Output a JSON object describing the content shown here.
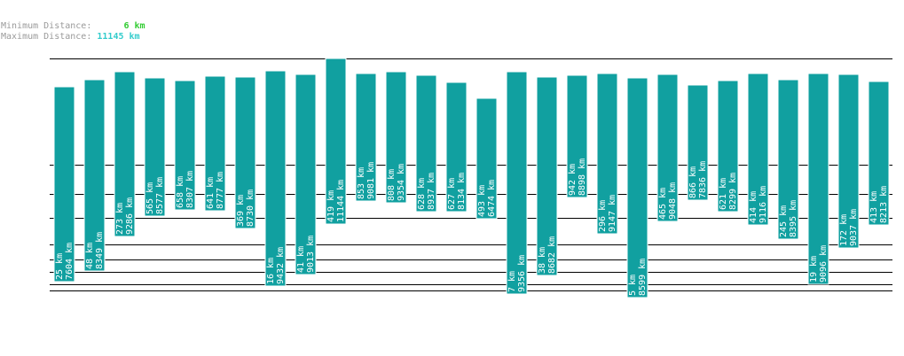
{
  "header": {
    "min_label": "Minimum Distance:",
    "min_value": "6 km",
    "max_label": "Maximum Distance:",
    "max_value": "11145 km"
  },
  "colors": {
    "bar": "#11a0a0",
    "bar_stroke": "#ffffff",
    "line": "#000000",
    "text_on_bar": "#ffffff"
  },
  "chart_data": {
    "type": "bar",
    "title": "",
    "xlabel": "",
    "ylabel": "",
    "series": [
      {
        "min": 25,
        "max": 7604
      },
      {
        "min": 48,
        "max": 8349
      },
      {
        "min": 273,
        "max": 9286
      },
      {
        "min": 565,
        "max": 8577
      },
      {
        "min": 658,
        "max": 8307
      },
      {
        "min": 641,
        "max": 8777
      },
      {
        "min": 369,
        "max": 8730
      },
      {
        "min": 16,
        "max": 9432
      },
      {
        "min": 41,
        "max": 9013
      },
      {
        "min": 419,
        "max": 11144
      },
      {
        "min": 853,
        "max": 9081
      },
      {
        "min": 808,
        "max": 9354
      },
      {
        "min": 628,
        "max": 8937
      },
      {
        "min": 627,
        "max": 8134
      },
      {
        "min": 493,
        "max": 6474
      },
      {
        "min": 7,
        "max": 9356
      },
      {
        "min": 38,
        "max": 8682
      },
      {
        "min": 942,
        "max": 8898
      },
      {
        "min": 296,
        "max": 9147
      },
      {
        "min": 5,
        "max": 8599
      },
      {
        "min": 465,
        "max": 9048
      },
      {
        "min": 866,
        "max": 7836
      },
      {
        "min": 621,
        "max": 8299
      },
      {
        "min": 414,
        "max": 9116
      },
      {
        "min": 245,
        "max": 8395
      },
      {
        "min": 19,
        "max": 9096
      },
      {
        "min": 172,
        "max": 9037
      },
      {
        "min": 413,
        "max": 8213
      }
    ],
    "unit": "km",
    "grid_values": [
      11145,
      1065,
      652,
      364,
      75,
      61,
      41,
      17,
      6
    ]
  }
}
